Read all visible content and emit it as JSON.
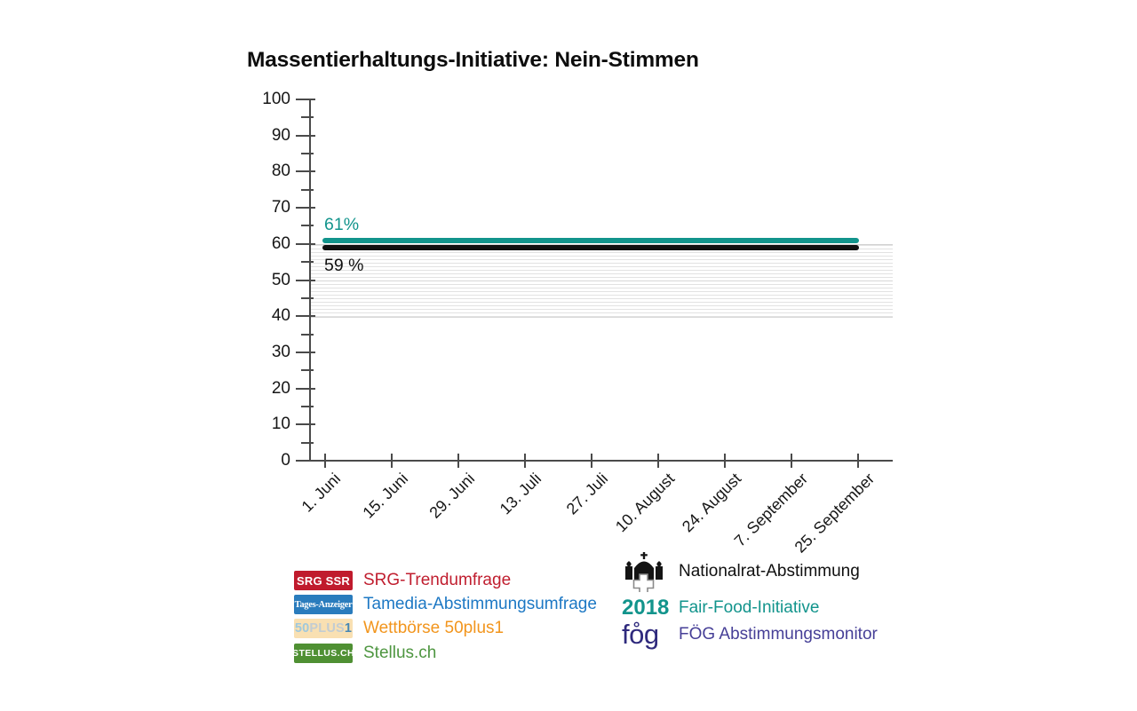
{
  "title": "Massentierhaltungs-Initiative: Nein-Stimmen",
  "chart_data": {
    "type": "line",
    "title": "Massentierhaltungs-Initiative: Nein-Stimmen",
    "xlabel": "",
    "ylabel": "",
    "ylim": [
      0,
      100
    ],
    "y_ticks": [
      0,
      10,
      20,
      30,
      40,
      50,
      60,
      70,
      80,
      90,
      100
    ],
    "y_minor_tick_step": 5,
    "grid": "off",
    "shaded_band": {
      "from": 40,
      "to": 60,
      "style": "light horizontal hatching"
    },
    "x_tick_labels": [
      "1. Juni",
      "15. Juni",
      "29. Juni",
      "13. Juli",
      "27. Juli",
      "10. August",
      "24. August",
      "7. September",
      "25. September"
    ],
    "series": [
      {
        "name": "Fair-Food-Initiative 2018",
        "value": 61,
        "label": "61%",
        "color": "#12948c",
        "label_pos": "above"
      },
      {
        "name": "Nein-Stimmen",
        "value": 59,
        "label": "59 %",
        "color": "#101010",
        "label_pos": "below"
      }
    ],
    "legend_position": "bottom"
  },
  "legend": {
    "left": [
      {
        "badge_text": "SRG SSR",
        "label": "SRG-Trendumfrage"
      },
      {
        "badge_text": "Tages-Anzeiger",
        "label": "Tamedia-Abstimmungsumfrage"
      },
      {
        "badge_parts": {
          "p1": "50",
          "p2": "PLUS",
          "p3": "1"
        },
        "label": "Wettbörse 50plus1"
      },
      {
        "badge_text": "STELLUS.CH",
        "label": "Stellus.ch"
      }
    ],
    "right": [
      {
        "icon": "bundeshaus-icon",
        "label": "Nationalrat-Abstimmung"
      },
      {
        "badge_text": "2018",
        "label": "Fair-Food-Initiative"
      },
      {
        "logo_text": "fo̊g",
        "label": "FÖG Abstimmungsmonitor"
      }
    ]
  },
  "colors": {
    "teal": "#12948c",
    "black_line": "#101010",
    "axis": "#4a4a4a",
    "srg_red": "#c01b2d",
    "tamedia_blue": "#1d78c4",
    "badge_blue": "#2a7cbd",
    "plus1_peach": "#f9e0b2",
    "orange": "#f2951d",
    "stellus_green": "#4f9033",
    "foeg_indigo": "#2f2a7d"
  }
}
